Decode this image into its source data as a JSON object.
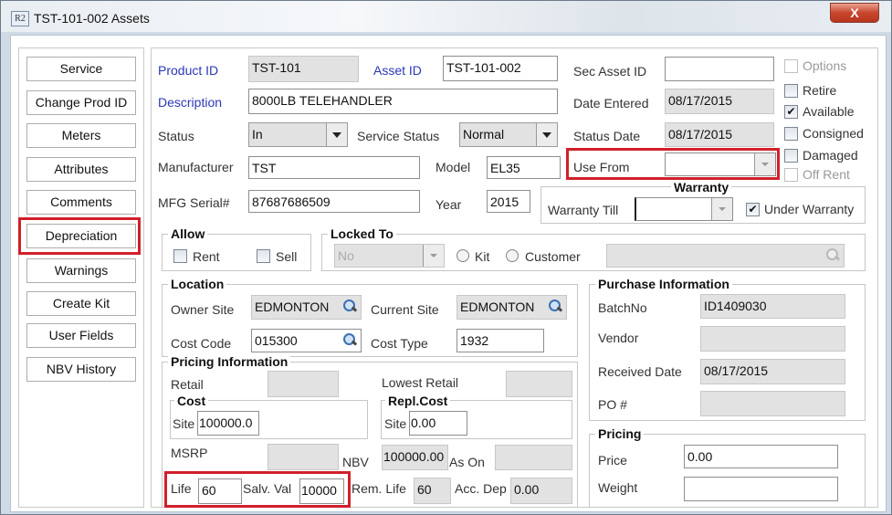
{
  "window": {
    "title": "TST-101-002 Assets",
    "icon": "R2",
    "close": "X"
  },
  "sidebar": {
    "buttons": [
      "Service",
      "Change Prod ID",
      "Meters",
      "Attributes",
      "Comments",
      "Depreciation",
      "Warnings",
      "Create Kit",
      "User Fields",
      "NBV History"
    ]
  },
  "header": {
    "product_id": {
      "label": "Product ID",
      "value": "TST-101"
    },
    "asset_id": {
      "label": "Asset ID",
      "value": "TST-101-002"
    },
    "sec_asset_id": {
      "label": "Sec Asset ID",
      "value": ""
    },
    "description": {
      "label": "Description",
      "value": "8000LB TELEHANDLER"
    },
    "date_entered": {
      "label": "Date Entered",
      "value": "08/17/2015"
    },
    "status": {
      "label": "Status",
      "value": "In"
    },
    "service_status": {
      "label": "Service Status",
      "value": "Normal"
    },
    "status_date": {
      "label": "Status Date",
      "value": "08/17/2015"
    },
    "use_from": {
      "label": "Use From",
      "value": ""
    },
    "manufacturer": {
      "label": "Manufacturer",
      "value": "TST"
    },
    "model": {
      "label": "Model",
      "value": "EL35"
    },
    "mfg_serial": {
      "label": "MFG Serial#",
      "value": "87687686509"
    },
    "year": {
      "label": "Year",
      "value": "2015"
    },
    "warranty": {
      "title": "Warranty",
      "till_label": "Warranty Till",
      "till_value": "",
      "under_label": "Under Warranty",
      "under_checked": true
    },
    "flags": [
      {
        "label": "Options",
        "checked": false,
        "disabled": true
      },
      {
        "label": "Retire",
        "checked": false
      },
      {
        "label": "Available",
        "checked": true
      },
      {
        "label": "Consigned",
        "checked": false
      },
      {
        "label": "Damaged",
        "checked": false
      },
      {
        "label": "Off Rent",
        "checked": false,
        "disabled": true
      }
    ]
  },
  "allow": {
    "title": "Allow",
    "rent": "Rent",
    "sell": "Sell"
  },
  "locked_to": {
    "title": "Locked To",
    "value": "No",
    "kit": "Kit",
    "customer": "Customer",
    "customer_value": ""
  },
  "location": {
    "title": "Location",
    "owner_site_label": "Owner Site",
    "owner_site": "EDMONTON",
    "current_site_label": "Current Site",
    "current_site": "EDMONTON",
    "cost_code_label": "Cost Code",
    "cost_code": "015300",
    "cost_type_label": "Cost Type",
    "cost_type": "1932"
  },
  "purchase": {
    "title": "Purchase Information",
    "batch_label": "BatchNo",
    "batch": "ID1409030",
    "vendor_label": "Vendor",
    "vendor": "",
    "received_label": "Received Date",
    "received": "08/17/2015",
    "po_label": "PO #",
    "po": ""
  },
  "pricing_info": {
    "title": "Pricing Information",
    "retail_label": "Retail",
    "retail": "",
    "lowest_label": "Lowest Retail",
    "lowest": "",
    "cost_title": "Cost",
    "cost_site_label": "Site",
    "cost_site": "100000.0",
    "repl_title": "Repl.Cost",
    "repl_site_label": "Site",
    "repl_site": "0.00",
    "msrp_label": "MSRP",
    "msrp": "",
    "nbv_label": "NBV",
    "nbv": "100000.00",
    "as_on_label": "As On",
    "as_on": "",
    "life_label": "Life",
    "life": "60",
    "salv_label": "Salv. Val",
    "salv": "10000",
    "rem_life_label": "Rem. Life",
    "rem_life": "60",
    "acc_dep_label": "Acc. Dep",
    "acc_dep": "0.00"
  },
  "pricing": {
    "title": "Pricing",
    "price_label": "Price",
    "price": "0.00",
    "weight_label": "Weight",
    "weight": ""
  },
  "highlight_color": "#d1202b"
}
